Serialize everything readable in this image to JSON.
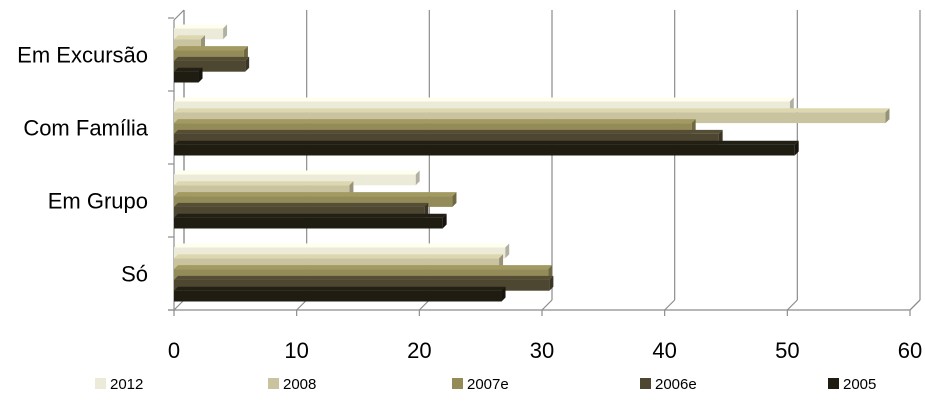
{
  "chart_data": {
    "type": "bar",
    "orientation": "horizontal",
    "style": "3d-clustered",
    "categories": [
      "Em Excursão",
      "Com Família",
      "Em Grupo",
      "Só"
    ],
    "series": [
      {
        "name": "2012",
        "color": "#ecebd9",
        "values": [
          4.0,
          50.2,
          19.7,
          27.0
        ]
      },
      {
        "name": "2008",
        "color": "#c9c3a0",
        "values": [
          2.2,
          58.0,
          14.3,
          26.5
        ]
      },
      {
        "name": "2007e",
        "color": "#948c58",
        "values": [
          5.7,
          42.2,
          22.7,
          30.5
        ]
      },
      {
        "name": "2006e",
        "color": "#4d4630",
        "values": [
          5.8,
          44.4,
          20.4,
          30.6
        ]
      },
      {
        "name": "2005",
        "color": "#1f1c12",
        "values": [
          2.0,
          50.6,
          21.9,
          26.7
        ]
      }
    ],
    "xlim": [
      0,
      60
    ],
    "xticks": [
      "0",
      "10",
      "20",
      "30",
      "40",
      "50",
      "60"
    ],
    "grid": true,
    "legend_position": "bottom",
    "title": "",
    "xlabel": "",
    "ylabel": ""
  }
}
